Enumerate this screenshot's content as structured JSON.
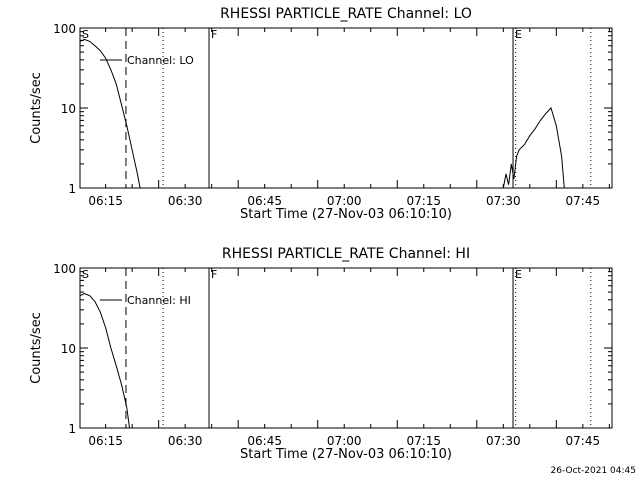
{
  "footer": {
    "timestamp": "26-Oct-2021 04:45"
  },
  "chart_data": [
    {
      "type": "line",
      "title": "RHESSI PARTICLE_RATE Channel: LO",
      "xlabel": "Start Time (27-Nov-03 06:10:10)",
      "ylabel": "Counts/sec",
      "yscale": "log",
      "ylim": [
        1,
        100
      ],
      "xlim": [
        "06:10:10",
        "07:50:30"
      ],
      "xticks": [
        "06:15",
        "06:30",
        "06:45",
        "07:00",
        "07:15",
        "07:30",
        "07:45"
      ],
      "yticks": [
        "1",
        "10",
        "100"
      ],
      "legend": "Channel: LO",
      "markers": [
        {
          "label": "S",
          "time": "06:10:10",
          "style": "solid"
        },
        {
          "label": "",
          "time": "06:18:50",
          "style": "dashed"
        },
        {
          "label": "",
          "time": "06:25:50",
          "style": "dotted"
        },
        {
          "label": "F",
          "time": "06:34:30",
          "style": "solid"
        },
        {
          "label": "E",
          "time": "07:31:50",
          "style": "solid"
        },
        {
          "label": "",
          "time": "07:32:20",
          "style": "dotted"
        },
        {
          "label": "",
          "time": "07:46:30",
          "style": "dotted"
        }
      ],
      "series": [
        {
          "segments": [
            {
              "x": [
                "06:10:10",
                "06:11:00",
                "06:12:00",
                "06:13:00",
                "06:14:00",
                "06:15:00",
                "06:16:00",
                "06:17:00",
                "06:18:00",
                "06:19:00",
                "06:20:00",
                "06:21:00",
                "06:21:30"
              ],
              "y": [
                68,
                72,
                68,
                60,
                52,
                42,
                30,
                20,
                11,
                6,
                3,
                1.5,
                1
              ]
            },
            {
              "x": [
                "07:30:00",
                "07:30:30",
                "07:31:00",
                "07:31:30",
                "07:32:00",
                "07:32:30",
                "07:33:00",
                "07:34:00",
                "07:35:00",
                "07:36:00",
                "07:37:00",
                "07:38:00",
                "07:39:00",
                "07:40:00",
                "07:41:00",
                "07:41:30"
              ],
              "y": [
                1,
                1.5,
                1.1,
                2,
                1.3,
                2.5,
                3,
                3.5,
                4.5,
                5.5,
                7,
                8.5,
                10,
                6,
                2.5,
                1
              ]
            }
          ]
        }
      ]
    },
    {
      "type": "line",
      "title": "RHESSI PARTICLE_RATE Channel: HI",
      "xlabel": "Start Time (27-Nov-03 06:10:10)",
      "ylabel": "Counts/sec",
      "yscale": "log",
      "ylim": [
        1,
        100
      ],
      "xlim": [
        "06:10:10",
        "07:50:30"
      ],
      "xticks": [
        "06:15",
        "06:30",
        "06:45",
        "07:00",
        "07:15",
        "07:30",
        "07:45"
      ],
      "yticks": [
        "1",
        "10",
        "100"
      ],
      "legend": "Channel: HI",
      "markers": [
        {
          "label": "S",
          "time": "06:10:10",
          "style": "solid"
        },
        {
          "label": "",
          "time": "06:18:50",
          "style": "dashed"
        },
        {
          "label": "",
          "time": "06:25:50",
          "style": "dotted"
        },
        {
          "label": "F",
          "time": "06:34:30",
          "style": "solid"
        },
        {
          "label": "E",
          "time": "07:31:50",
          "style": "solid"
        },
        {
          "label": "",
          "time": "07:32:20",
          "style": "dotted"
        },
        {
          "label": "",
          "time": "07:46:30",
          "style": "dotted"
        }
      ],
      "series": [
        {
          "segments": [
            {
              "x": [
                "06:10:10",
                "06:11:00",
                "06:12:00",
                "06:13:00",
                "06:14:00",
                "06:15:00",
                "06:16:00",
                "06:17:00",
                "06:18:00",
                "06:19:00",
                "06:19:30"
              ],
              "y": [
                45,
                48,
                45,
                38,
                28,
                18,
                10,
                6,
                3.5,
                1.8,
                1
              ]
            }
          ]
        }
      ]
    }
  ]
}
